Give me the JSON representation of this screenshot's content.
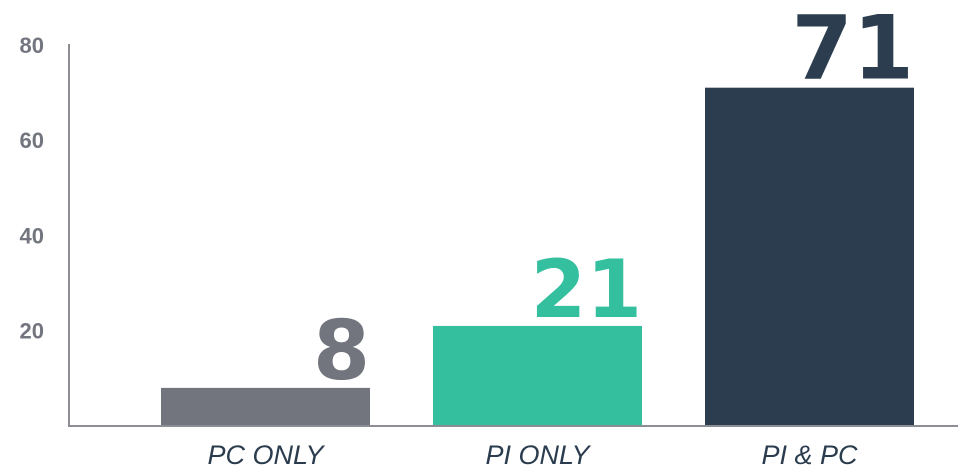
{
  "chart_data": {
    "type": "bar",
    "title": "",
    "xlabel": "",
    "ylabel": "",
    "categories": [
      "PC ONLY",
      "PI ONLY",
      "PI & PC"
    ],
    "values": [
      8,
      21,
      71
    ],
    "value_labels": [
      "8",
      "21",
      "71"
    ],
    "bar_colors": [
      "#73757e",
      "#34bf9e",
      "#2b3d4f"
    ],
    "ylim": [
      0,
      80
    ],
    "yticks": [
      20,
      40,
      60,
      80
    ],
    "ytick_labels": [
      "20",
      "40",
      "60",
      "80"
    ],
    "grid": false,
    "legend": "none"
  }
}
